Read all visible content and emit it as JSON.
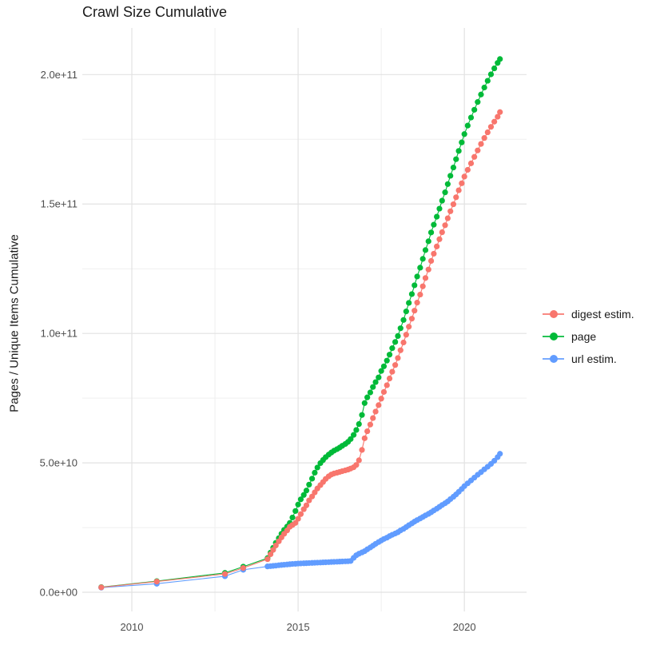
{
  "page": {
    "title": "Crawl Size Cumulative"
  },
  "chart_data": {
    "type": "scatter",
    "title": "Crawl Size Cumulative",
    "xlabel": "",
    "ylabel": "Pages / Unique Items Cumulative",
    "legend_position": "right",
    "grid": true,
    "values_in": "billions (1e9 pages / items)",
    "x_range": [
      2008.51,
      2021.87
    ],
    "y_range": [
      -7.4,
      218
    ],
    "x_ticks": {
      "major": [
        {
          "v": 2010,
          "label": "2010"
        },
        {
          "v": 2015,
          "label": "2015"
        },
        {
          "v": 2020,
          "label": "2020"
        }
      ],
      "minor": [
        2012.5,
        2017.5
      ]
    },
    "y_ticks": {
      "major": [
        {
          "v": 0,
          "label": "0.0e+00"
        },
        {
          "v": 50,
          "label": "5.0e+10"
        },
        {
          "v": 100,
          "label": "1.0e+11"
        },
        {
          "v": 150,
          "label": "1.5e+11"
        },
        {
          "v": 200,
          "label": "2.0e+11"
        }
      ],
      "minor": [
        25,
        75,
        125,
        175
      ]
    },
    "series": [
      {
        "name": "digest estim.",
        "color": "#F8766D",
        "points": [
          [
            2009.08,
            1.9
          ],
          [
            2010.75,
            4.15
          ],
          [
            2012.8,
            7.1
          ],
          [
            2013.35,
            9.4
          ],
          [
            2014.08,
            12.8
          ],
          [
            2014.17,
            14.7
          ],
          [
            2014.25,
            16.4
          ],
          [
            2014.33,
            18.1
          ],
          [
            2014.42,
            19.7
          ],
          [
            2014.5,
            21.2
          ],
          [
            2014.58,
            22.6
          ],
          [
            2014.67,
            23.9
          ],
          [
            2014.75,
            25.3
          ],
          [
            2014.83,
            26.0
          ],
          [
            2014.92,
            26.8
          ],
          [
            2015.0,
            28.4
          ],
          [
            2015.08,
            30.2
          ],
          [
            2015.17,
            32.1
          ],
          [
            2015.25,
            33.6
          ],
          [
            2015.33,
            35.5
          ],
          [
            2015.42,
            37.0
          ],
          [
            2015.5,
            38.6
          ],
          [
            2015.58,
            40.1
          ],
          [
            2015.67,
            41.4
          ],
          [
            2015.75,
            42.6
          ],
          [
            2015.83,
            43.8
          ],
          [
            2015.92,
            44.8
          ],
          [
            2016.0,
            45.5
          ],
          [
            2016.08,
            45.9
          ],
          [
            2016.17,
            46.2
          ],
          [
            2016.25,
            46.5
          ],
          [
            2016.33,
            46.8
          ],
          [
            2016.42,
            47.1
          ],
          [
            2016.5,
            47.4
          ],
          [
            2016.58,
            47.8
          ],
          [
            2016.67,
            48.3
          ],
          [
            2016.75,
            49.2
          ],
          [
            2016.83,
            51.0
          ],
          [
            2016.92,
            55.0
          ],
          [
            2017.0,
            59.5
          ],
          [
            2017.08,
            62.2
          ],
          [
            2017.17,
            64.8
          ],
          [
            2017.25,
            67.3
          ],
          [
            2017.33,
            69.8
          ],
          [
            2017.42,
            72.3
          ],
          [
            2017.5,
            74.8
          ],
          [
            2017.58,
            77.4
          ],
          [
            2017.67,
            80.0
          ],
          [
            2017.75,
            82.6
          ],
          [
            2017.83,
            85.2
          ],
          [
            2017.92,
            87.8
          ],
          [
            2018.0,
            90.5
          ],
          [
            2018.08,
            93.5
          ],
          [
            2018.17,
            96.5
          ],
          [
            2018.25,
            99.5
          ],
          [
            2018.33,
            102.6
          ],
          [
            2018.42,
            105.7
          ],
          [
            2018.5,
            108.8
          ],
          [
            2018.58,
            111.9
          ],
          [
            2018.67,
            115.0
          ],
          [
            2018.75,
            118.2
          ],
          [
            2018.83,
            121.4
          ],
          [
            2018.92,
            124.7
          ],
          [
            2019.0,
            128.0
          ],
          [
            2019.08,
            130.8
          ],
          [
            2019.17,
            133.6
          ],
          [
            2019.25,
            136.4
          ],
          [
            2019.33,
            139.1
          ],
          [
            2019.42,
            141.8
          ],
          [
            2019.5,
            144.5
          ],
          [
            2019.58,
            147.2
          ],
          [
            2019.67,
            149.9
          ],
          [
            2019.75,
            152.6
          ],
          [
            2019.83,
            155.3
          ],
          [
            2019.92,
            158.0
          ],
          [
            2020.0,
            160.6
          ],
          [
            2020.1,
            163.2
          ],
          [
            2020.2,
            165.7
          ],
          [
            2020.3,
            168.2
          ],
          [
            2020.4,
            170.7
          ],
          [
            2020.5,
            173.2
          ],
          [
            2020.6,
            175.5
          ],
          [
            2020.7,
            177.7
          ],
          [
            2020.8,
            179.8
          ],
          [
            2020.9,
            181.8
          ],
          [
            2021.0,
            183.7
          ],
          [
            2021.07,
            185.5
          ]
        ]
      },
      {
        "name": "page",
        "color": "#00BA38",
        "points": [
          [
            2009.08,
            2.0
          ],
          [
            2010.75,
            4.3
          ],
          [
            2012.8,
            7.5
          ],
          [
            2013.35,
            9.9
          ],
          [
            2014.08,
            13.2
          ],
          [
            2014.17,
            15.3
          ],
          [
            2014.25,
            17.2
          ],
          [
            2014.33,
            19.1
          ],
          [
            2014.42,
            20.9
          ],
          [
            2014.5,
            22.6
          ],
          [
            2014.58,
            24.1
          ],
          [
            2014.67,
            25.4
          ],
          [
            2014.75,
            26.8
          ],
          [
            2014.83,
            28.9
          ],
          [
            2014.92,
            31.4
          ],
          [
            2015.0,
            33.9
          ],
          [
            2015.08,
            35.9
          ],
          [
            2015.17,
            37.6
          ],
          [
            2015.25,
            39.3
          ],
          [
            2015.33,
            41.6
          ],
          [
            2015.42,
            43.9
          ],
          [
            2015.5,
            46.2
          ],
          [
            2015.58,
            48.2
          ],
          [
            2015.67,
            49.9
          ],
          [
            2015.75,
            51.1
          ],
          [
            2015.83,
            52.2
          ],
          [
            2015.92,
            53.2
          ],
          [
            2016.0,
            54.0
          ],
          [
            2016.08,
            54.7
          ],
          [
            2016.17,
            55.3
          ],
          [
            2016.25,
            55.9
          ],
          [
            2016.33,
            56.6
          ],
          [
            2016.42,
            57.3
          ],
          [
            2016.5,
            58.1
          ],
          [
            2016.58,
            59.2
          ],
          [
            2016.67,
            60.8
          ],
          [
            2016.75,
            62.7
          ],
          [
            2016.83,
            65.0
          ],
          [
            2016.92,
            68.5
          ],
          [
            2017.0,
            73.1
          ],
          [
            2017.08,
            75.3
          ],
          [
            2017.17,
            77.2
          ],
          [
            2017.25,
            79.3
          ],
          [
            2017.33,
            81.2
          ],
          [
            2017.42,
            83.0
          ],
          [
            2017.5,
            85.5
          ],
          [
            2017.58,
            87.3
          ],
          [
            2017.67,
            89.5
          ],
          [
            2017.75,
            91.8
          ],
          [
            2017.83,
            94.3
          ],
          [
            2017.92,
            96.7
          ],
          [
            2018.0,
            99.0
          ],
          [
            2018.08,
            102.0
          ],
          [
            2018.17,
            105.2
          ],
          [
            2018.25,
            108.5
          ],
          [
            2018.33,
            111.8
          ],
          [
            2018.42,
            115.2
          ],
          [
            2018.5,
            118.6
          ],
          [
            2018.58,
            122.0
          ],
          [
            2018.67,
            125.4
          ],
          [
            2018.75,
            128.8
          ],
          [
            2018.83,
            132.2
          ],
          [
            2018.92,
            135.6
          ],
          [
            2019.0,
            139.0
          ],
          [
            2019.08,
            142.0
          ],
          [
            2019.17,
            145.1
          ],
          [
            2019.25,
            148.2
          ],
          [
            2019.33,
            151.3
          ],
          [
            2019.42,
            154.5
          ],
          [
            2019.5,
            157.7
          ],
          [
            2019.58,
            160.9
          ],
          [
            2019.67,
            164.1
          ],
          [
            2019.75,
            167.3
          ],
          [
            2019.83,
            170.5
          ],
          [
            2019.92,
            173.8
          ],
          [
            2020.0,
            177.0
          ],
          [
            2020.1,
            180.3
          ],
          [
            2020.2,
            183.4
          ],
          [
            2020.3,
            186.4
          ],
          [
            2020.4,
            189.4
          ],
          [
            2020.5,
            192.3
          ],
          [
            2020.6,
            195.0
          ],
          [
            2020.7,
            197.6
          ],
          [
            2020.8,
            200.1
          ],
          [
            2020.9,
            202.4
          ],
          [
            2021.0,
            204.5
          ],
          [
            2021.07,
            206.0
          ]
        ]
      },
      {
        "name": "url estim.",
        "color": "#619CFF",
        "points": [
          [
            2009.08,
            1.8
          ],
          [
            2010.75,
            3.3
          ],
          [
            2012.8,
            6.2
          ],
          [
            2013.35,
            8.7
          ],
          [
            2014.08,
            10.0
          ],
          [
            2014.17,
            10.1
          ],
          [
            2014.25,
            10.2
          ],
          [
            2014.33,
            10.3
          ],
          [
            2014.42,
            10.45
          ],
          [
            2014.5,
            10.55
          ],
          [
            2014.58,
            10.65
          ],
          [
            2014.67,
            10.75
          ],
          [
            2014.75,
            10.85
          ],
          [
            2014.83,
            10.95
          ],
          [
            2014.92,
            11.0
          ],
          [
            2015.0,
            11.1
          ],
          [
            2015.08,
            11.15
          ],
          [
            2015.17,
            11.2
          ],
          [
            2015.25,
            11.25
          ],
          [
            2015.33,
            11.3
          ],
          [
            2015.42,
            11.35
          ],
          [
            2015.5,
            11.4
          ],
          [
            2015.58,
            11.45
          ],
          [
            2015.67,
            11.5
          ],
          [
            2015.75,
            11.55
          ],
          [
            2015.83,
            11.6
          ],
          [
            2015.92,
            11.65
          ],
          [
            2016.0,
            11.7
          ],
          [
            2016.08,
            11.75
          ],
          [
            2016.17,
            11.8
          ],
          [
            2016.25,
            11.85
          ],
          [
            2016.33,
            11.9
          ],
          [
            2016.42,
            11.95
          ],
          [
            2016.5,
            12.0
          ],
          [
            2016.58,
            12.1
          ],
          [
            2016.67,
            13.3
          ],
          [
            2016.75,
            14.3
          ],
          [
            2016.83,
            14.9
          ],
          [
            2016.92,
            15.4
          ],
          [
            2017.0,
            15.9
          ],
          [
            2017.08,
            16.6
          ],
          [
            2017.17,
            17.3
          ],
          [
            2017.25,
            18.0
          ],
          [
            2017.33,
            18.7
          ],
          [
            2017.42,
            19.4
          ],
          [
            2017.5,
            20.0
          ],
          [
            2017.58,
            20.6
          ],
          [
            2017.67,
            21.1
          ],
          [
            2017.75,
            21.7
          ],
          [
            2017.83,
            22.2
          ],
          [
            2017.92,
            22.7
          ],
          [
            2018.0,
            23.2
          ],
          [
            2018.08,
            23.9
          ],
          [
            2018.17,
            24.5
          ],
          [
            2018.25,
            25.2
          ],
          [
            2018.33,
            25.9
          ],
          [
            2018.42,
            26.6
          ],
          [
            2018.5,
            27.3
          ],
          [
            2018.58,
            27.9
          ],
          [
            2018.67,
            28.5
          ],
          [
            2018.75,
            29.1
          ],
          [
            2018.83,
            29.7
          ],
          [
            2018.92,
            30.3
          ],
          [
            2019.0,
            30.9
          ],
          [
            2019.08,
            31.6
          ],
          [
            2019.17,
            32.3
          ],
          [
            2019.25,
            33.0
          ],
          [
            2019.33,
            33.7
          ],
          [
            2019.42,
            34.4
          ],
          [
            2019.5,
            35.1
          ],
          [
            2019.58,
            36.0
          ],
          [
            2019.67,
            36.9
          ],
          [
            2019.75,
            37.8
          ],
          [
            2019.83,
            38.8
          ],
          [
            2019.92,
            39.9
          ],
          [
            2020.0,
            41.0
          ],
          [
            2020.1,
            42.1
          ],
          [
            2020.2,
            43.2
          ],
          [
            2020.3,
            44.3
          ],
          [
            2020.4,
            45.4
          ],
          [
            2020.5,
            46.4
          ],
          [
            2020.6,
            47.5
          ],
          [
            2020.7,
            48.5
          ],
          [
            2020.8,
            49.6
          ],
          [
            2020.9,
            50.8
          ],
          [
            2021.0,
            52.2
          ],
          [
            2021.07,
            53.5
          ]
        ]
      }
    ]
  },
  "style": {
    "grid_major_color": "#e2e2e2",
    "grid_minor_color": "#efefef",
    "tick_label_color": "#4d4d4d"
  }
}
